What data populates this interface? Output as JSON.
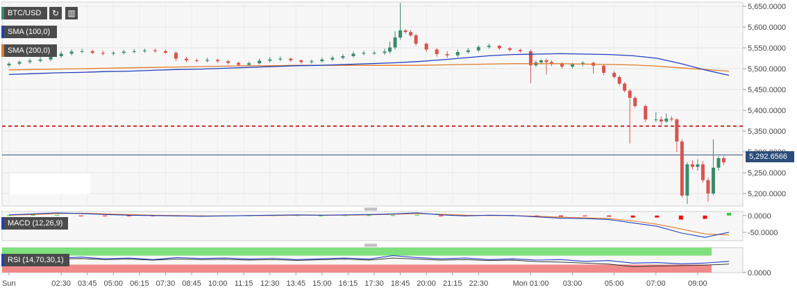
{
  "toolbar": {
    "symbol_label": "BTC/USD",
    "refresh_icon": "refresh-icon",
    "candles_icon": "candlestick-icon"
  },
  "indicators": {
    "sma100": {
      "label": "SMA (100,0)",
      "color": "#1f3fbf"
    },
    "sma200": {
      "label": "SMA (200,0)",
      "color": "#e07a2a"
    },
    "macd": {
      "label": "MACD (12,26,9)",
      "color": "#1f3fbf"
    },
    "rsi": {
      "label": "RSI (14,70,30,1)",
      "color": "#1f3fbf"
    }
  },
  "current_price": "5,292.6566",
  "colors": {
    "up": "#3a8a6a",
    "down": "#d9534f",
    "resistance": "#cc0000",
    "current_line": "#2b4d7a",
    "rsi_overbought": "#7ee07e",
    "rsi_oversold": "#f08a8a"
  },
  "chart_data": [
    {
      "type": "candlestick",
      "title": "",
      "ylim": [
        5170,
        5660
      ],
      "yticks": [
        "5,650.0000",
        "5,600.0000",
        "5,550.0000",
        "5,500.0000",
        "5,450.0000",
        "5,400.0000",
        "5,350.0000",
        "5,300.0000",
        "5,250.0000",
        "5,200.0000"
      ],
      "ytick_values": [
        5650,
        5600,
        5550,
        5500,
        5450,
        5400,
        5350,
        5300,
        5250,
        5200
      ],
      "x_labels": [
        "Sun",
        "02:30",
        "03:45",
        "05:00",
        "06:15",
        "07:30",
        "08:45",
        "10:00",
        "11:15",
        "12:30",
        "13:45",
        "15:00",
        "16:15",
        "17:30",
        "18:45",
        "20:00",
        "21:15",
        "22:30",
        "Mon 01:00",
        "03:00",
        "05:00",
        "07:00",
        "09:00"
      ],
      "x_label_hours": [
        0,
        2.5,
        3.75,
        5,
        6.25,
        7.5,
        8.75,
        10,
        11.25,
        12.5,
        13.75,
        15,
        16.25,
        17.5,
        18.75,
        20,
        21.25,
        22.5,
        25,
        27,
        29,
        31,
        33
      ],
      "horizontal_lines": [
        {
          "value": 5362,
          "style": "dashed",
          "color": "#cc0000"
        }
      ],
      "current_value": 5292.6566,
      "candles_t": [
        0,
        0.5,
        1,
        1.5,
        2,
        2.5,
        3,
        3.5,
        4,
        4.5,
        5,
        5.5,
        6,
        6.5,
        7,
        7.5,
        8,
        8.5,
        9,
        9.5,
        10,
        10.5,
        11,
        11.5,
        12,
        12.5,
        13,
        13.5,
        14,
        14.5,
        15,
        15.5,
        16,
        16.5,
        17,
        17.5,
        18,
        18.25,
        18.5,
        18.75,
        19,
        19.25,
        19.5,
        20,
        20.5,
        21,
        21.5,
        22,
        22.5,
        23,
        23.5,
        24,
        24.5,
        25,
        25.25,
        25.5,
        25.75,
        26,
        26.5,
        27,
        27.5,
        28,
        28.5,
        29,
        29.25,
        29.5,
        29.75,
        30,
        30.5,
        31,
        31.25,
        31.5,
        31.75,
        32,
        32.25,
        32.5,
        32.75,
        33,
        33.25,
        33.5,
        33.75,
        34,
        34.25
      ],
      "candles_open": [
        5508,
        5512,
        5516,
        5519,
        5522,
        5530,
        5536,
        5541,
        5542,
        5538,
        5536,
        5538,
        5541,
        5542,
        5544,
        5542,
        5538,
        5524,
        5520,
        5519,
        5521,
        5518,
        5514,
        5509,
        5513,
        5519,
        5522,
        5524,
        5520,
        5516,
        5518,
        5522,
        5526,
        5530,
        5536,
        5538,
        5538,
        5541,
        5551,
        5575,
        5592,
        5588,
        5580,
        5560,
        5546,
        5535,
        5532,
        5540,
        5544,
        5552,
        5555,
        5549,
        5545,
        5542,
        5508,
        5515,
        5520,
        5516,
        5512,
        5505,
        5510,
        5514,
        5507,
        5490,
        5480,
        5464,
        5447,
        5430,
        5410,
        5378,
        5378,
        5373,
        5380,
        5378,
        5325,
        5195,
        5270,
        5264,
        5270,
        5232,
        5200,
        5262,
        5285
      ],
      "candles_close": [
        5512,
        5516,
        5519,
        5522,
        5530,
        5536,
        5541,
        5542,
        5538,
        5536,
        5538,
        5541,
        5542,
        5544,
        5542,
        5538,
        5524,
        5520,
        5519,
        5521,
        5518,
        5514,
        5509,
        5513,
        5519,
        5522,
        5524,
        5520,
        5516,
        5518,
        5522,
        5526,
        5530,
        5536,
        5538,
        5538,
        5541,
        5551,
        5575,
        5592,
        5588,
        5580,
        5560,
        5546,
        5535,
        5532,
        5540,
        5544,
        5552,
        5555,
        5549,
        5545,
        5542,
        5508,
        5515,
        5520,
        5516,
        5512,
        5505,
        5510,
        5514,
        5507,
        5490,
        5480,
        5464,
        5447,
        5430,
        5410,
        5378,
        5378,
        5373,
        5380,
        5378,
        5325,
        5195,
        5270,
        5264,
        5270,
        5232,
        5200,
        5262,
        5285,
        5275
      ],
      "candles_high": [
        5516,
        5520,
        5524,
        5528,
        5535,
        5542,
        5546,
        5548,
        5546,
        5543,
        5542,
        5545,
        5547,
        5548,
        5548,
        5546,
        5542,
        5528,
        5524,
        5526,
        5524,
        5521,
        5517,
        5517,
        5524,
        5527,
        5529,
        5527,
        5522,
        5522,
        5527,
        5531,
        5535,
        5541,
        5543,
        5543,
        5548,
        5565,
        5590,
        5658,
        5595,
        5593,
        5584,
        5563,
        5549,
        5542,
        5546,
        5550,
        5556,
        5560,
        5557,
        5552,
        5548,
        5545,
        5520,
        5522,
        5524,
        5520,
        5516,
        5514,
        5518,
        5517,
        5510,
        5494,
        5484,
        5468,
        5451,
        5434,
        5414,
        5395,
        5385,
        5392,
        5386,
        5381,
        5330,
        5275,
        5280,
        5282,
        5278,
        5238,
        5330,
        5290,
        5290
      ],
      "candles_low": [
        5504,
        5508,
        5512,
        5515,
        5518,
        5526,
        5532,
        5537,
        5535,
        5532,
        5532,
        5534,
        5537,
        5538,
        5538,
        5536,
        5519,
        5516,
        5515,
        5515,
        5514,
        5510,
        5505,
        5506,
        5510,
        5515,
        5518,
        5516,
        5512,
        5512,
        5515,
        5518,
        5522,
        5527,
        5532,
        5533,
        5533,
        5536,
        5546,
        5570,
        5584,
        5576,
        5555,
        5540,
        5529,
        5526,
        5528,
        5536,
        5540,
        5548,
        5545,
        5541,
        5538,
        5465,
        5504,
        5510,
        5486,
        5506,
        5500,
        5500,
        5506,
        5488,
        5484,
        5476,
        5460,
        5443,
        5320,
        5406,
        5372,
        5372,
        5365,
        5370,
        5373,
        5300,
        5190,
        5175,
        5258,
        5255,
        5226,
        5180,
        5196,
        5255,
        5268
      ],
      "sma100": [
        5486,
        5488,
        5490,
        5491,
        5493,
        5494,
        5496,
        5498,
        5499,
        5501,
        5503,
        5505,
        5507,
        5508,
        5510,
        5512,
        5514,
        5517,
        5521,
        5526,
        5531,
        5534,
        5535,
        5536,
        5535,
        5534,
        5531,
        5525,
        5512,
        5497,
        5484
      ],
      "sma200": [
        5497,
        5498,
        5499,
        5500,
        5501,
        5502,
        5503,
        5504,
        5505,
        5506,
        5507,
        5507,
        5508,
        5508,
        5508,
        5508,
        5508,
        5508,
        5509,
        5510,
        5511,
        5512,
        5512,
        5512,
        5511,
        5510,
        5509,
        5506,
        5502,
        5498,
        5494
      ],
      "ma_t": [
        0,
        1.15,
        2.3,
        3.45,
        4.6,
        5.75,
        6.9,
        8.05,
        9.2,
        10.35,
        11.5,
        12.65,
        13.8,
        14.95,
        16.1,
        17.25,
        18.4,
        19.55,
        20.7,
        21.85,
        23,
        24.15,
        25.3,
        26.45,
        27.6,
        28.75,
        29.9,
        31.05,
        32.2,
        33.35,
        34.5
      ]
    },
    {
      "type": "macd",
      "ylim": [
        -75,
        12
      ],
      "yticks": [
        "0.0000",
        "-50.0000"
      ],
      "ytick_values": [
        0,
        -50
      ],
      "t": [
        0,
        1.15,
        2.3,
        3.45,
        4.6,
        5.75,
        6.9,
        8.05,
        9.2,
        10.35,
        11.5,
        12.65,
        13.8,
        14.95,
        16.1,
        17.25,
        18.4,
        19.55,
        20.7,
        21.85,
        23,
        24.15,
        25.3,
        26.45,
        27.6,
        28.75,
        29.9,
        31.05,
        32.2,
        33.35,
        34.5
      ],
      "macd": [
        2,
        5,
        8,
        6,
        3,
        1,
        0,
        -1,
        -2,
        -1,
        0,
        1,
        2,
        1,
        2,
        3,
        5,
        8,
        2,
        -1,
        1,
        0,
        -4,
        -8,
        -9,
        -12,
        -22,
        -32,
        -52,
        -65,
        -50
      ],
      "signal": [
        1,
        3,
        6,
        7,
        5,
        3,
        1,
        0,
        -1,
        -1,
        0,
        0,
        1,
        1,
        1,
        2,
        4,
        6,
        4,
        1,
        0,
        0,
        -2,
        -5,
        -7,
        -9,
        -16,
        -26,
        -40,
        -55,
        -58
      ],
      "hist": [
        1,
        2,
        2,
        -1,
        -2,
        -2,
        -1,
        -1,
        -1,
        0,
        0,
        1,
        1,
        0,
        1,
        1,
        1,
        2,
        -2,
        -2,
        1,
        0,
        -2,
        -3,
        -2,
        -3,
        -6,
        -6,
        -12,
        -10,
        8
      ]
    },
    {
      "type": "rsi",
      "ylim": [
        0,
        100
      ],
      "yticks": [
        "0.0000"
      ],
      "ytick_values": [
        0
      ],
      "t": [
        0,
        1.15,
        2.3,
        3.45,
        4.6,
        5.75,
        6.9,
        8.05,
        9.2,
        10.35,
        11.5,
        12.65,
        13.8,
        14.95,
        16.1,
        17.25,
        18.4,
        19.55,
        20.7,
        21.85,
        23,
        24.15,
        25.3,
        26.45,
        27.6,
        28.75,
        29.9,
        31.05,
        32.2,
        33.35,
        34.5
      ],
      "rsi": [
        60,
        65,
        57,
        62,
        55,
        58,
        52,
        60,
        56,
        58,
        54,
        57,
        52,
        55,
        58,
        54,
        68,
        60,
        55,
        58,
        52,
        55,
        50,
        52,
        45,
        48,
        38,
        40,
        35,
        38,
        45
      ],
      "rsi_b": [
        55,
        58,
        54,
        56,
        52,
        54,
        50,
        54,
        52,
        53,
        50,
        52,
        49,
        51,
        54,
        50,
        58,
        54,
        50,
        52,
        48,
        50,
        44,
        42,
        38,
        34,
        24,
        26,
        28,
        30,
        34
      ]
    }
  ]
}
